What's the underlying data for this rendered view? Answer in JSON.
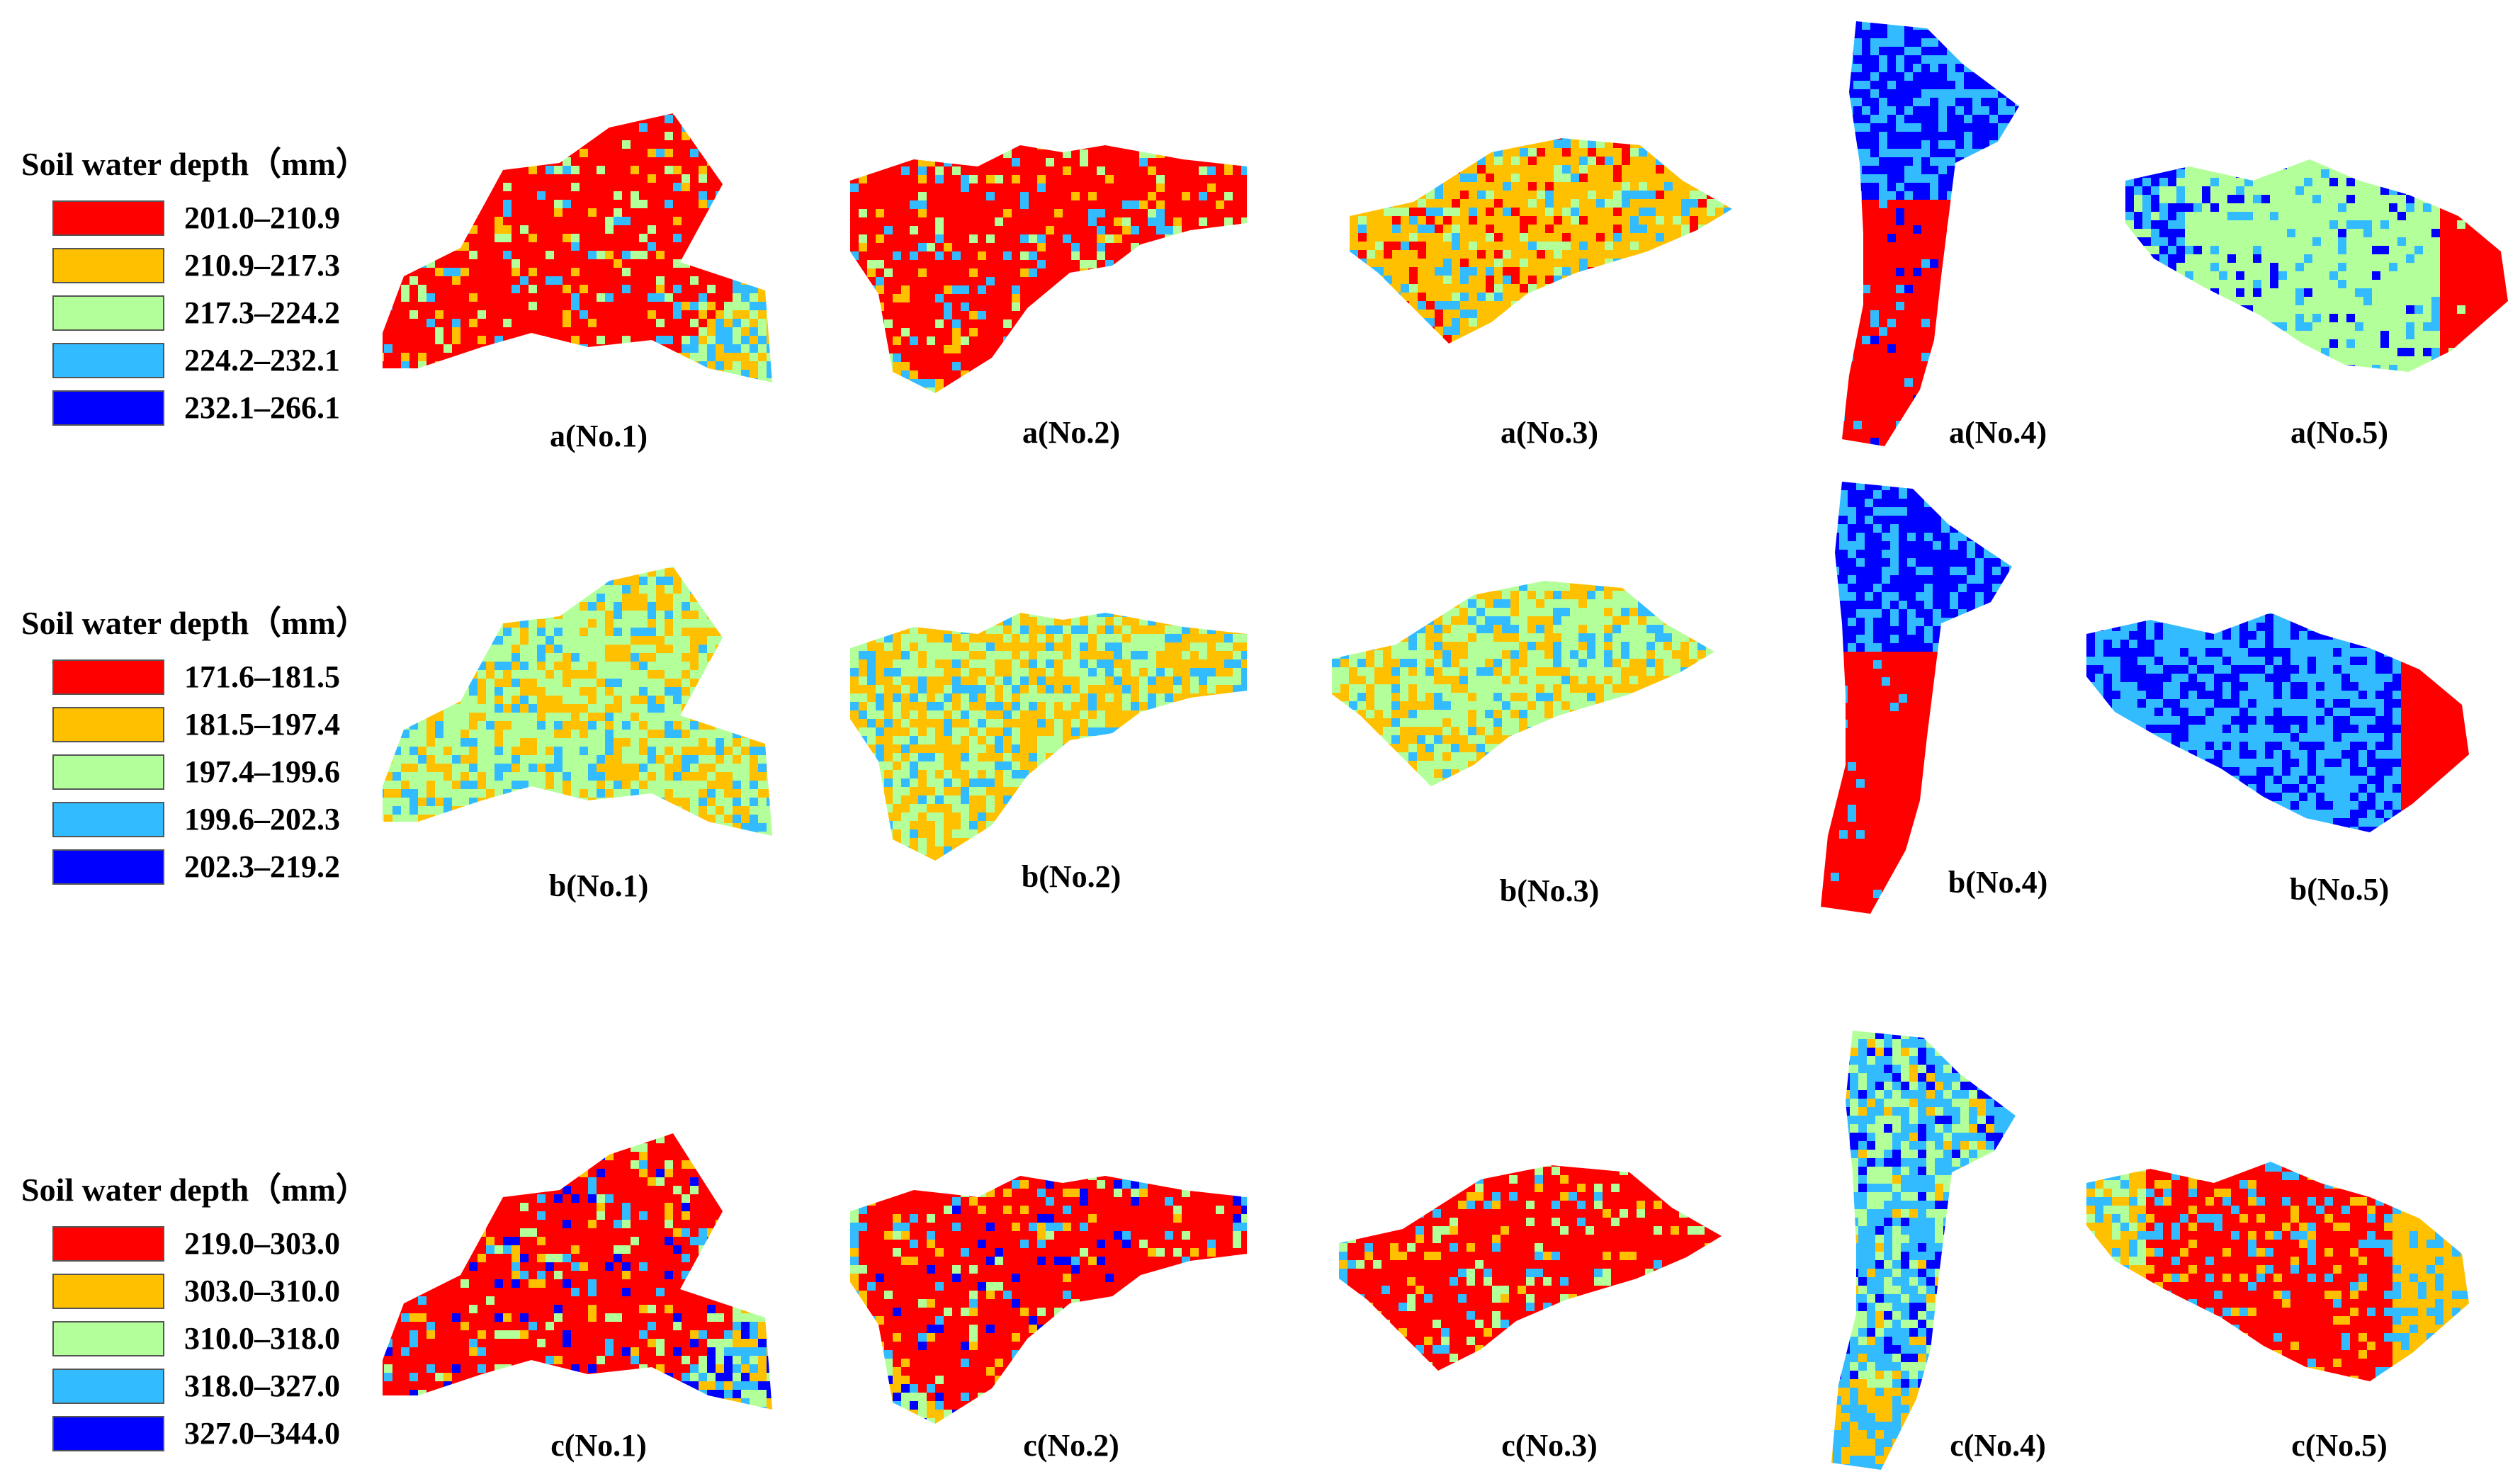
{
  "rows": [
    {
      "id": "a",
      "legend": {
        "title": "Soil water depth（mm）",
        "items": [
          {
            "range": "201.0–210.9",
            "color": "#ff0000"
          },
          {
            "range": "210.9–217.3",
            "color": "#ffc000"
          },
          {
            "range": "217.3–224.2",
            "color": "#b3ff99"
          },
          {
            "range": "224.2–232.1",
            "color": "#33bbff"
          },
          {
            "range": "232.1–266.1",
            "color": "#0000ff"
          }
        ]
      },
      "maps": [
        {
          "label": "a(No.1)",
          "dominant": "#ff0000",
          "mix": [
            "#ffc000",
            "#b3ff99",
            "#33bbff"
          ]
        },
        {
          "label": "a(No.2)",
          "dominant": "#ff0000",
          "mix": [
            "#ffc000",
            "#b3ff99",
            "#33bbff"
          ]
        },
        {
          "label": "a(No.3)",
          "dominant": "#ffc000",
          "mix": [
            "#ff0000",
            "#b3ff99",
            "#33bbff"
          ]
        },
        {
          "label": "a(No.4)",
          "dominant": "#0000ff",
          "mix": [
            "#33bbff",
            "#ff0000"
          ]
        },
        {
          "label": "a(No.5)",
          "dominant": "#b3ff99",
          "mix": [
            "#33bbff",
            "#0000ff",
            "#ff0000"
          ]
        }
      ]
    },
    {
      "id": "b",
      "legend": {
        "title": "Soil water depth（mm）",
        "items": [
          {
            "range": "171.6–181.5",
            "color": "#ff0000"
          },
          {
            "range": "181.5–197.4",
            "color": "#ffc000"
          },
          {
            "range": "197.4–199.6",
            "color": "#b3ff99"
          },
          {
            "range": "199.6–202.3",
            "color": "#33bbff"
          },
          {
            "range": "202.3–219.2",
            "color": "#0000ff"
          }
        ]
      },
      "maps": [
        {
          "label": "b(No.1)",
          "dominant": "#b3ff99",
          "mix": [
            "#ffc000",
            "#33bbff"
          ]
        },
        {
          "label": "b(No.2)",
          "dominant": "#ffc000",
          "mix": [
            "#b3ff99",
            "#33bbff"
          ]
        },
        {
          "label": "b(No.3)",
          "dominant": "#b3ff99",
          "mix": [
            "#ffc000",
            "#33bbff"
          ]
        },
        {
          "label": "b(No.4)",
          "dominant": "#0000ff",
          "mix": [
            "#33bbff",
            "#ff0000"
          ]
        },
        {
          "label": "b(No.5)",
          "dominant": "#33bbff",
          "mix": [
            "#0000ff",
            "#ff0000"
          ]
        }
      ]
    },
    {
      "id": "c",
      "legend": {
        "title": "Soil water depth（mm）",
        "items": [
          {
            "range": "219.0–303.0",
            "color": "#ff0000"
          },
          {
            "range": "303.0–310.0",
            "color": "#ffc000"
          },
          {
            "range": "310.0–318.0",
            "color": "#b3ff99"
          },
          {
            "range": "318.0–327.0",
            "color": "#33bbff"
          },
          {
            "range": "327.0–344.0",
            "color": "#0000ff"
          }
        ]
      },
      "maps": [
        {
          "label": "c(No.1)",
          "dominant": "#ff0000",
          "mix": [
            "#ffc000",
            "#b3ff99",
            "#33bbff",
            "#0000ff"
          ]
        },
        {
          "label": "c(No.2)",
          "dominant": "#ff0000",
          "mix": [
            "#ffc000",
            "#b3ff99",
            "#33bbff",
            "#0000ff"
          ]
        },
        {
          "label": "c(No.3)",
          "dominant": "#ff0000",
          "mix": [
            "#ffc000",
            "#b3ff99",
            "#33bbff"
          ]
        },
        {
          "label": "c(No.4)",
          "dominant": "#33bbff",
          "mix": [
            "#b3ff99",
            "#0000ff",
            "#ffc000"
          ]
        },
        {
          "label": "c(No.5)",
          "dominant": "#ff0000",
          "mix": [
            "#ffc000",
            "#33bbff",
            "#b3ff99"
          ]
        }
      ]
    }
  ]
}
